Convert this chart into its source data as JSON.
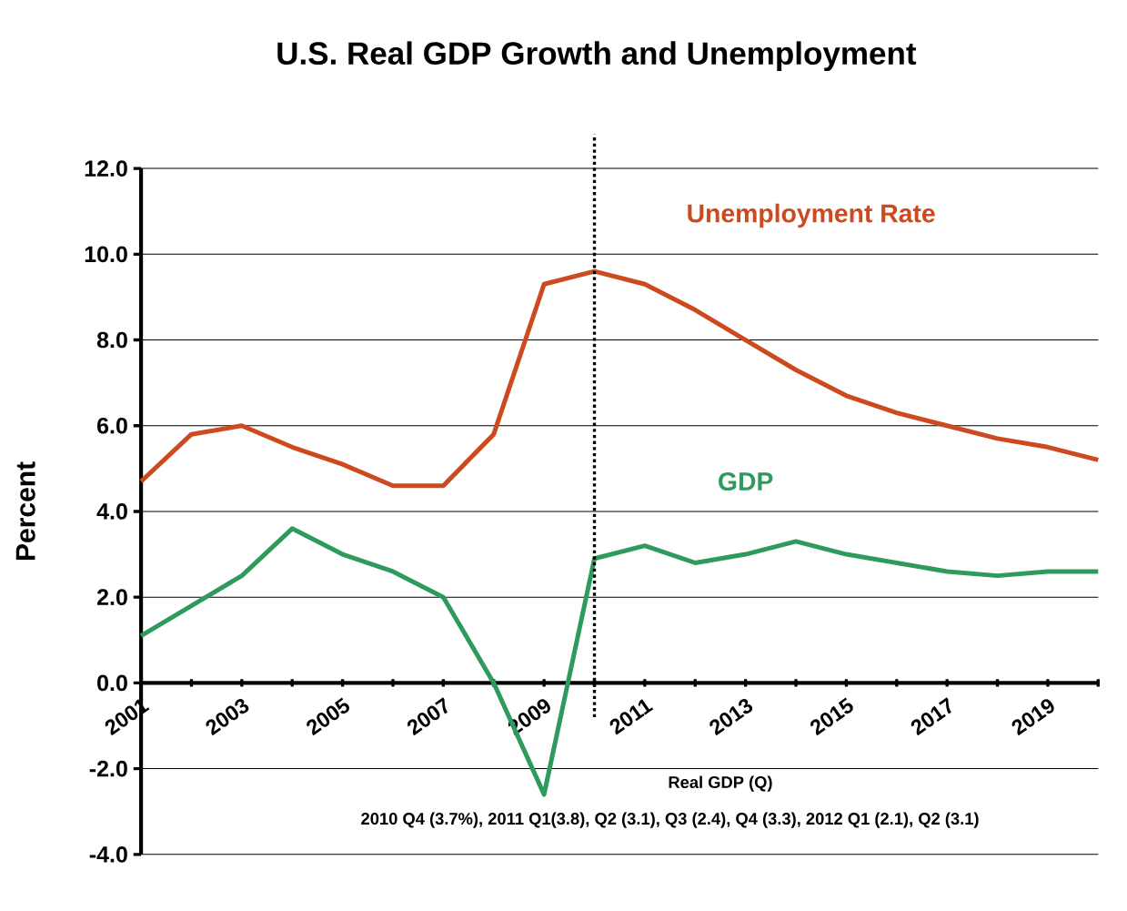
{
  "chart_data": {
    "type": "line",
    "title": "U.S. Real GDP Growth and Unemployment",
    "ylabel": "Percent",
    "x": [
      2001,
      2002,
      2003,
      2004,
      2005,
      2006,
      2007,
      2008,
      2009,
      2010,
      2011,
      2012,
      2013,
      2014,
      2015,
      2016,
      2017,
      2018,
      2019,
      2020
    ],
    "series": [
      {
        "name": "Unemployment Rate",
        "color": "#cc4a1e",
        "values": [
          4.7,
          5.8,
          6.0,
          5.5,
          5.1,
          4.6,
          4.6,
          5.8,
          9.3,
          9.6,
          9.3,
          8.7,
          8.0,
          7.3,
          6.7,
          6.3,
          6.0,
          5.7,
          5.5,
          5.2
        ]
      },
      {
        "name": "GDP",
        "color": "#2e9a5e",
        "values": [
          1.1,
          1.8,
          2.5,
          3.6,
          3.0,
          2.6,
          2.0,
          0.0,
          -2.6,
          2.9,
          3.2,
          2.8,
          3.0,
          3.3,
          3.0,
          2.8,
          2.6,
          2.5,
          2.6,
          2.6
        ]
      }
    ],
    "xlim": [
      2001,
      2020
    ],
    "xticks": [
      2001,
      {
        "value": 2002,
        "label": null
      },
      2003,
      {
        "value": 2004,
        "label": null
      },
      2005,
      {
        "value": 2006,
        "label": null
      },
      2007,
      {
        "value": 2008,
        "label": null
      },
      2009,
      {
        "value": 2010,
        "label": null
      },
      2011,
      {
        "value": 2012,
        "label": null
      },
      2013,
      {
        "value": 2014,
        "label": null
      },
      2015,
      {
        "value": 2016,
        "label": null
      },
      2017,
      {
        "value": 2018,
        "label": null
      },
      2019,
      {
        "value": 2020,
        "label": null
      }
    ],
    "ylim": [
      -4,
      12
    ],
    "yticks": [
      {
        "value": -4,
        "label": "-4.0"
      },
      {
        "value": -2,
        "label": "-2.0"
      },
      {
        "value": 0,
        "label": "0.0"
      },
      {
        "value": 2,
        "label": "2.0"
      },
      {
        "value": 4,
        "label": "4.0"
      },
      {
        "value": 6,
        "label": "6.0"
      },
      {
        "value": 8,
        "label": "8.0"
      },
      {
        "value": 10,
        "label": "10.0"
      },
      {
        "value": 12,
        "label": "12.0"
      }
    ],
    "ref_lines": [
      {
        "axis": "x",
        "value": 2010,
        "color": "#000000",
        "line_style": "dotted"
      }
    ],
    "annotations": [
      "Real GDP (Q)",
      "2010 Q4 (3.7%), 2011 Q1(3.8), Q2 (3.1), Q3 (2.4), Q4 (3.3), 2012 Q1 (2.1), Q2 (3.1)"
    ],
    "grid": "y",
    "legend": false,
    "marker": "none",
    "line_style": "solid"
  }
}
